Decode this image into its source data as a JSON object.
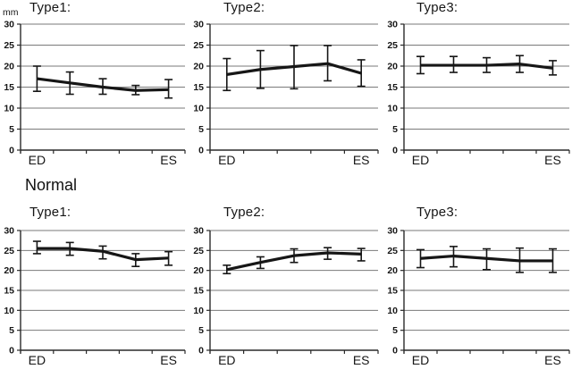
{
  "figure": {
    "unit_label": "mm",
    "section_label": "Normal"
  },
  "axis": {
    "ymin": 0,
    "ymax": 30,
    "ystep": 5,
    "ytick_labels": [
      "30",
      "25",
      "20",
      "15",
      "10",
      "5",
      "0"
    ],
    "x_first_label": "ED",
    "x_last_label": "ES"
  },
  "colors": {
    "line": "#161616",
    "error_bar": "#161616",
    "axis": "#2a2a2a",
    "grid": "#7a7a7a",
    "text": "#161616"
  },
  "chart_data": [
    {
      "type": "line",
      "title": "Type1:",
      "group": "top-row",
      "categories": [
        "ED",
        "",
        "",
        "",
        "ES"
      ],
      "ylim": [
        0,
        30
      ],
      "values": [
        17,
        16,
        15,
        14.2,
        14.4
      ],
      "err_high": [
        20,
        18.6,
        17,
        15.4,
        16.8
      ],
      "err_low": [
        14,
        13.3,
        13.3,
        13.2,
        12.4
      ]
    },
    {
      "type": "line",
      "title": "Type2:",
      "group": "top-row",
      "categories": [
        "ED",
        "",
        "",
        "",
        "ES"
      ],
      "ylim": [
        0,
        30
      ],
      "values": [
        18,
        19.2,
        19.9,
        20.6,
        18.3
      ],
      "err_high": [
        21.8,
        23.7,
        24.9,
        24.9,
        21.5
      ],
      "err_low": [
        14.2,
        14.7,
        14.6,
        16.5,
        15.2
      ]
    },
    {
      "type": "line",
      "title": "Type3:",
      "group": "top-row",
      "categories": [
        "ED",
        "",
        "",
        "",
        "ES"
      ],
      "ylim": [
        0,
        30
      ],
      "values": [
        20.2,
        20.2,
        20.2,
        20.5,
        19.5
      ],
      "err_high": [
        22.3,
        22.3,
        22,
        22.5,
        21.3
      ],
      "err_low": [
        18.2,
        18.5,
        18.5,
        18.5,
        17.9
      ]
    },
    {
      "type": "line",
      "title": "Type1:",
      "group": "normal-row",
      "categories": [
        "ED",
        "",
        "",
        "",
        "ES"
      ],
      "ylim": [
        0,
        30
      ],
      "values": [
        25.5,
        25.5,
        24.8,
        22.7,
        23.1
      ],
      "err_high": [
        27.3,
        27,
        26.1,
        24.2,
        24.7
      ],
      "err_low": [
        24.2,
        23.8,
        22.9,
        21,
        21.3
      ]
    },
    {
      "type": "line",
      "title": "Type2:",
      "group": "normal-row",
      "categories": [
        "ED",
        "",
        "",
        "",
        "ES"
      ],
      "ylim": [
        0,
        30
      ],
      "values": [
        20.2,
        22,
        23.7,
        24.4,
        24.1
      ],
      "err_high": [
        21.3,
        23.4,
        25.4,
        25.7,
        25.5
      ],
      "err_low": [
        19.2,
        20.5,
        22,
        22.8,
        22.4
      ]
    },
    {
      "type": "line",
      "title": "Type3:",
      "group": "normal-row",
      "categories": [
        "ED",
        "",
        "",
        "",
        "ES"
      ],
      "ylim": [
        0,
        30
      ],
      "values": [
        23,
        23.6,
        23,
        22.4,
        22.4
      ],
      "err_high": [
        25.2,
        26,
        25.4,
        25.6,
        25.4
      ],
      "err_low": [
        20.7,
        20.9,
        20.2,
        19.5,
        19.5
      ]
    }
  ]
}
